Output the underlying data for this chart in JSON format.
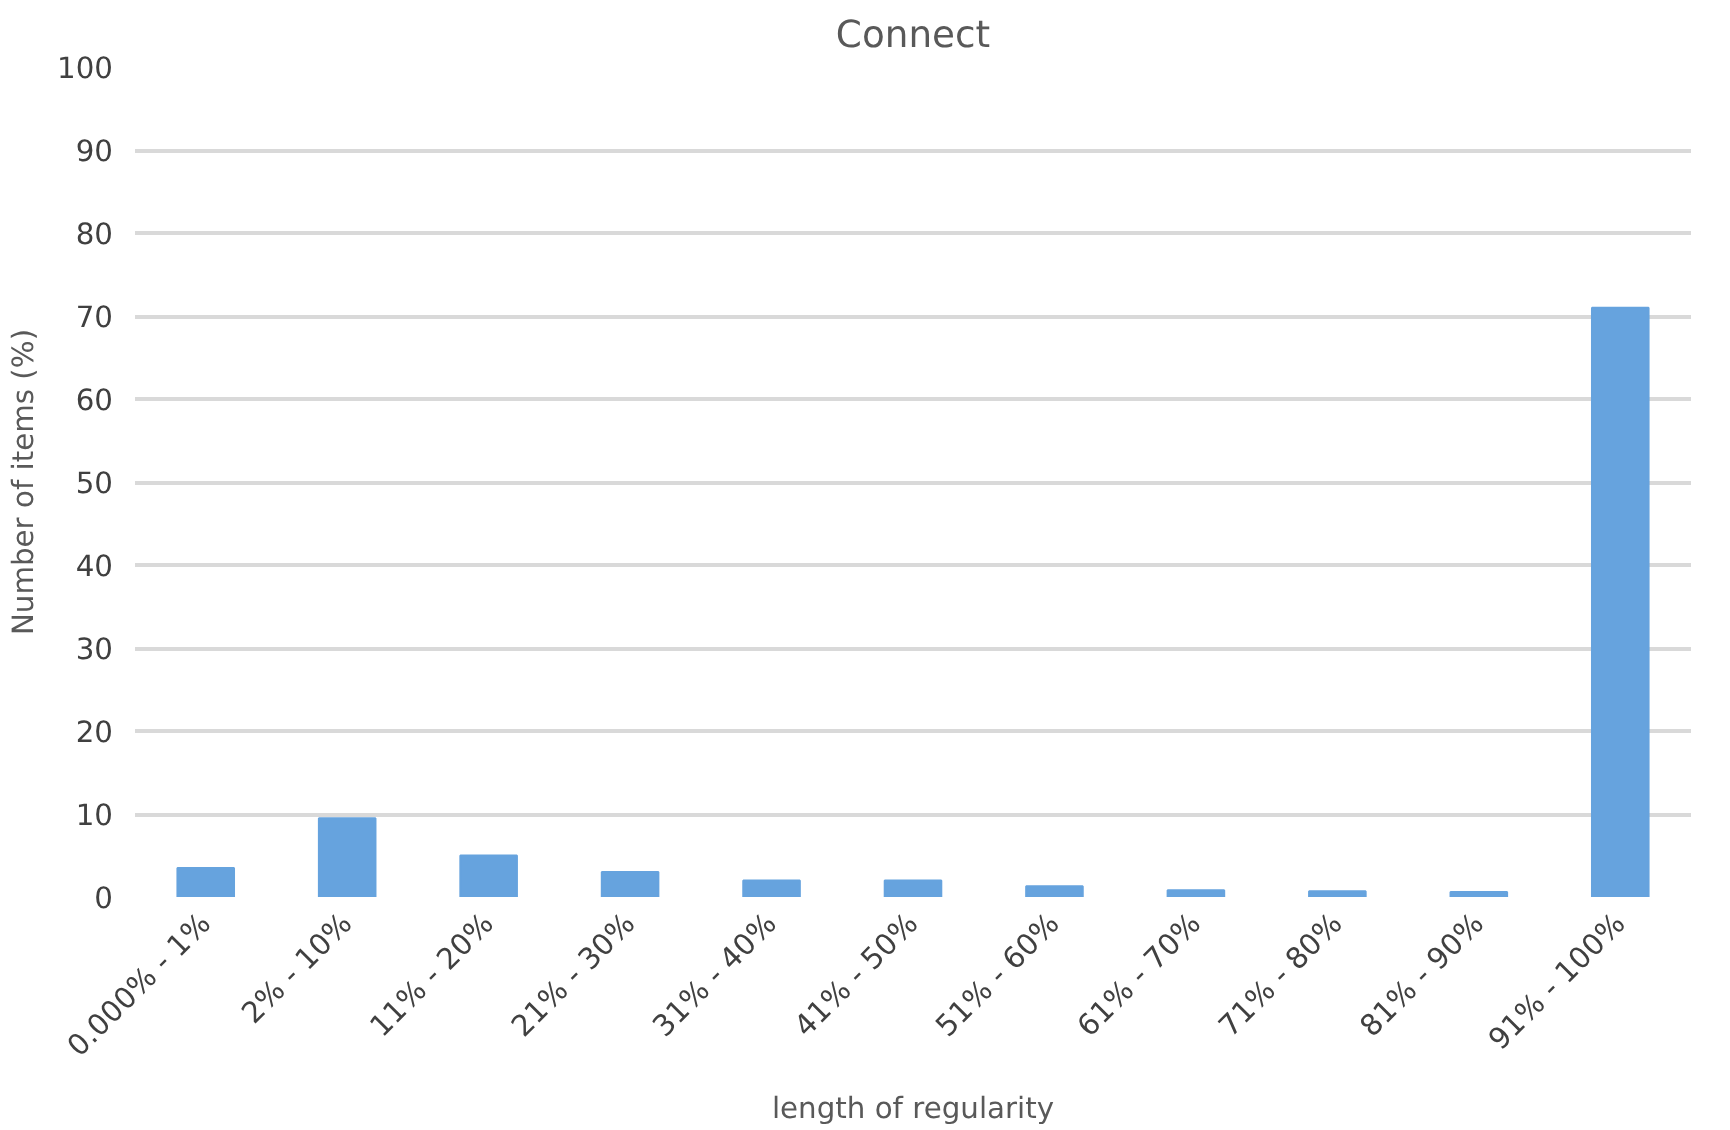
{
  "chart_data": {
    "type": "bar",
    "title": "Connect",
    "xlabel": "length of regularity",
    "ylabel": "Number of items (%)",
    "categories": [
      "0.000% - 1%",
      "2% - 10%",
      "11% - 20%",
      "21% - 30%",
      "31% - 40%",
      "41% - 50%",
      "51% - 60%",
      "61% - 70%",
      "71% - 80%",
      "81% - 90%",
      "91% - 100%"
    ],
    "values": [
      3.5,
      9.5,
      5,
      3,
      2,
      2,
      1.3,
      0.8,
      0.7,
      0.6,
      71
    ],
    "color": "#66a3de",
    "ylim": [
      0,
      100
    ],
    "yticks": [
      0,
      10,
      20,
      30,
      40,
      50,
      60,
      70,
      80,
      90,
      100
    ],
    "grid": "y"
  }
}
